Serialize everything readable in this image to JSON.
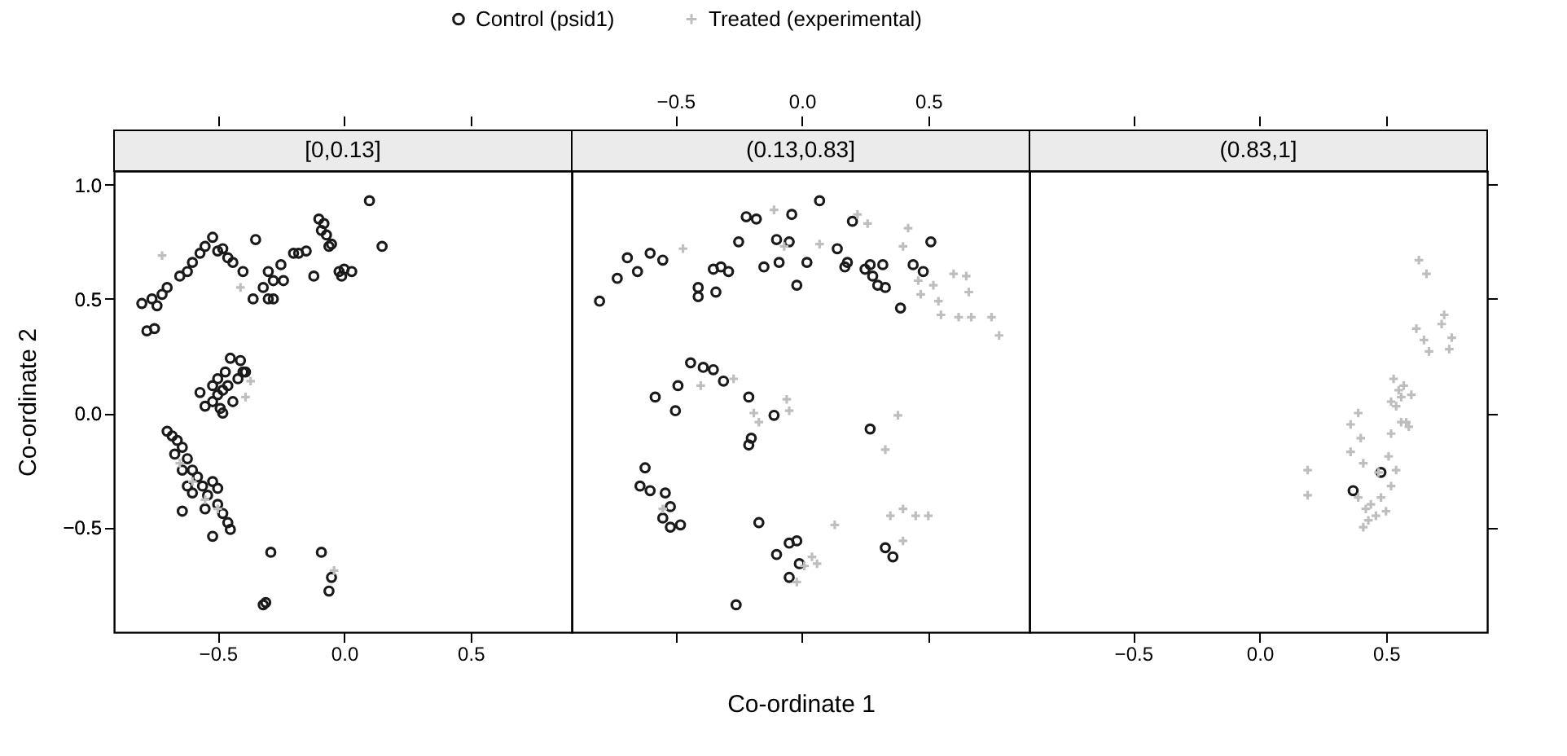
{
  "chart_data": [
    {
      "type": "scatter",
      "title": "[0,0.13]",
      "ylabel": "Co-ordinate 2",
      "legend": "top",
      "xlim": [
        -0.91,
        0.9
      ],
      "ylim": [
        -0.96,
        1.06
      ],
      "xticks": [
        {
          "value": -0.5,
          "label": "−0.5"
        },
        {
          "value": 0,
          "label": "0.0"
        },
        {
          "value": 0.5,
          "label": "0.5"
        }
      ],
      "yticks": [
        {
          "value": -0.5,
          "label": "−0.5"
        },
        {
          "value": 0,
          "label": "0.0"
        },
        {
          "value": 0.5,
          "label": "0.5"
        },
        {
          "value": 1,
          "label": "1.0"
        }
      ],
      "series": [
        {
          "name": "Control (psid1)",
          "color": "#1a1a1a",
          "marker": "circle",
          "x": [
            -0.8,
            -0.78,
            -0.76,
            -0.74,
            -0.72,
            -0.75,
            -0.7,
            -0.65,
            -0.62,
            -0.6,
            -0.57,
            -0.55,
            -0.52,
            -0.5,
            -0.48,
            -0.46,
            -0.44,
            -0.4,
            -0.35,
            -0.3,
            -0.28,
            -0.25,
            -0.2,
            -0.18,
            -0.15,
            -0.1,
            -0.06,
            -0.05,
            -0.02,
            -0.01,
            0.0,
            -0.08,
            -0.07,
            -0.09,
            0.1,
            0.15,
            0.03,
            -0.3,
            -0.32,
            -0.28,
            -0.24,
            -0.36,
            -0.12,
            -0.57,
            -0.55,
            -0.52,
            -0.5,
            -0.48,
            -0.46,
            -0.5,
            -0.47,
            -0.45,
            -0.41,
            -0.42,
            -0.44,
            -0.48,
            -0.49,
            -0.52,
            -0.4,
            -0.39,
            -0.7,
            -0.68,
            -0.66,
            -0.64,
            -0.67,
            -0.62,
            -0.64,
            -0.6,
            -0.58,
            -0.62,
            -0.6,
            -0.56,
            -0.54,
            -0.52,
            -0.5,
            -0.55,
            -0.5,
            -0.48,
            -0.46,
            -0.45,
            -0.52,
            -0.64,
            -0.29,
            -0.32,
            -0.31,
            -0.09,
            -0.06,
            -0.05
          ],
          "values": [
            0.48,
            0.36,
            0.5,
            0.47,
            0.52,
            0.37,
            0.55,
            0.6,
            0.62,
            0.66,
            0.7,
            0.73,
            0.77,
            0.71,
            0.72,
            0.68,
            0.66,
            0.62,
            0.76,
            0.5,
            0.5,
            0.65,
            0.7,
            0.7,
            0.71,
            0.85,
            0.73,
            0.74,
            0.62,
            0.6,
            0.63,
            0.83,
            0.78,
            0.8,
            0.93,
            0.73,
            0.62,
            0.62,
            0.55,
            0.58,
            0.58,
            0.5,
            0.6,
            0.09,
            0.03,
            0.05,
            0.08,
            0.1,
            0.12,
            0.15,
            0.18,
            0.24,
            0.23,
            0.15,
            0.05,
            0.0,
            0.02,
            0.12,
            0.18,
            0.18,
            -0.08,
            -0.1,
            -0.12,
            -0.15,
            -0.18,
            -0.2,
            -0.25,
            -0.25,
            -0.28,
            -0.32,
            -0.35,
            -0.32,
            -0.36,
            -0.3,
            -0.33,
            -0.42,
            -0.4,
            -0.44,
            -0.48,
            -0.51,
            -0.54,
            -0.43,
            -0.61,
            -0.84,
            -0.83,
            -0.61,
            -0.78,
            -0.72
          ]
        },
        {
          "name": "Treated (experimental)",
          "color": "#bebebe",
          "marker": "cross",
          "x": [
            -0.72,
            -0.41,
            -0.37,
            -0.39,
            -0.65,
            -0.6,
            -0.55,
            -0.5,
            -0.04
          ],
          "values": [
            0.69,
            0.55,
            0.14,
            0.07,
            -0.22,
            -0.3,
            -0.38,
            -0.42,
            -0.69
          ]
        }
      ]
    },
    {
      "type": "scatter",
      "title": "(0.13,0.83]",
      "xlabel": "Co-ordinate 1",
      "tick_labels": "x",
      "xlim": [
        -0.91,
        0.9
      ],
      "ylim": [
        -0.96,
        1.06
      ],
      "xticks": [
        {
          "value": -0.5,
          "label": "−0.5"
        },
        {
          "value": 0,
          "label": "0.0"
        },
        {
          "value": 0.5,
          "label": "0.5"
        }
      ],
      "series": [
        {
          "color": "#1a1a1a",
          "marker": "circle",
          "x": [
            -0.8,
            -0.73,
            -0.69,
            -0.65,
            -0.6,
            -0.55,
            -0.41,
            -0.41,
            -0.35,
            -0.32,
            -0.29,
            -0.34,
            -0.25,
            -0.22,
            -0.18,
            -0.15,
            -0.1,
            -0.09,
            -0.05,
            -0.04,
            -0.02,
            0.02,
            0.07,
            0.14,
            0.17,
            0.18,
            0.2,
            0.25,
            0.27,
            0.28,
            0.3,
            0.32,
            0.33,
            0.39,
            0.44,
            0.48,
            0.51,
            -0.58,
            -0.49,
            -0.44,
            -0.39,
            -0.35,
            -0.31,
            -0.21,
            -0.5,
            -0.11,
            -0.2,
            -0.21,
            0.27,
            -0.62,
            -0.64,
            -0.6,
            -0.54,
            -0.52,
            -0.55,
            -0.52,
            -0.48,
            -0.17,
            -0.1,
            -0.05,
            -0.02,
            -0.01,
            -0.05,
            -0.26,
            0.33,
            0.36
          ],
          "values": [
            0.49,
            0.59,
            0.68,
            0.62,
            0.7,
            0.67,
            0.55,
            0.51,
            0.63,
            0.64,
            0.62,
            0.53,
            0.75,
            0.86,
            0.85,
            0.64,
            0.76,
            0.66,
            0.75,
            0.87,
            0.56,
            0.66,
            0.93,
            0.72,
            0.64,
            0.66,
            0.84,
            0.63,
            0.65,
            0.6,
            0.56,
            0.65,
            0.55,
            0.46,
            0.65,
            0.62,
            0.75,
            0.07,
            0.12,
            0.22,
            0.2,
            0.19,
            0.14,
            0.07,
            0.01,
            -0.01,
            -0.11,
            -0.14,
            -0.07,
            -0.24,
            -0.32,
            -0.34,
            -0.35,
            -0.41,
            -0.46,
            -0.5,
            -0.49,
            -0.48,
            -0.62,
            -0.57,
            -0.56,
            -0.66,
            -0.72,
            -0.84,
            -0.59,
            -0.63
          ]
        },
        {
          "color": "#bebebe",
          "marker": "cross",
          "x": [
            -0.47,
            -0.11,
            -0.07,
            0.07,
            0.22,
            0.26,
            0.42,
            0.4,
            0.46,
            0.47,
            0.52,
            0.54,
            0.55,
            0.6,
            0.65,
            0.66,
            0.62,
            0.67,
            0.75,
            0.78,
            -0.27,
            -0.06,
            -0.4,
            -0.19,
            -0.17,
            -0.05,
            0.38,
            0.33,
            0.13,
            0.35,
            0.4,
            0.45,
            0.5,
            0.4,
            0.04,
            0.06,
            0.01,
            -0.02,
            -0.55
          ],
          "values": [
            0.72,
            0.89,
            0.73,
            0.74,
            0.87,
            0.83,
            0.81,
            0.73,
            0.58,
            0.52,
            0.56,
            0.49,
            0.43,
            0.61,
            0.6,
            0.53,
            0.42,
            0.42,
            0.42,
            0.34,
            0.15,
            0.06,
            0.12,
            0.0,
            -0.04,
            0.01,
            -0.01,
            -0.16,
            -0.49,
            -0.45,
            -0.42,
            -0.45,
            -0.45,
            -0.56,
            -0.63,
            -0.66,
            -0.67,
            -0.74,
            -0.42
          ]
        }
      ]
    },
    {
      "type": "scatter",
      "title": "(0.83,1]",
      "tick_labels": "x",
      "xlim": [
        -0.91,
        0.9
      ],
      "ylim": [
        -0.96,
        1.06
      ],
      "xticks": [
        {
          "value": -0.5,
          "label": "−0.5"
        },
        {
          "value": 0,
          "label": "0.0"
        },
        {
          "value": 0.5,
          "label": "0.5"
        }
      ],
      "yticks": [
        {
          "value": -0.5,
          "label": null
        },
        {
          "value": 0,
          "label": null
        },
        {
          "value": 0.5,
          "label": null
        },
        {
          "value": 1,
          "label": null
        }
      ],
      "series": [
        {
          "color": "#1a1a1a",
          "marker": "circle",
          "x": [
            0.37,
            0.48
          ],
          "values": [
            -0.34,
            -0.26
          ]
        },
        {
          "color": "#bebebe",
          "marker": "cross",
          "x": [
            0.63,
            0.66,
            0.73,
            0.72,
            0.62,
            0.65,
            0.67,
            0.76,
            0.75,
            0.56,
            0.52,
            0.54,
            0.56,
            0.59,
            0.52,
            0.58,
            0.39,
            0.36,
            0.4,
            0.36,
            0.41,
            0.51,
            0.54,
            0.47,
            0.52,
            0.19,
            0.19,
            0.39,
            0.42,
            0.46,
            0.41,
            0.5,
            0.48,
            0.55,
            0.57,
            0.6,
            0.53,
            0.44,
            0.43
          ],
          "values": [
            0.67,
            0.61,
            0.43,
            0.39,
            0.37,
            0.32,
            0.27,
            0.33,
            0.28,
            0.07,
            0.05,
            0.03,
            -0.04,
            -0.06,
            -0.09,
            -0.04,
            0.0,
            -0.05,
            -0.11,
            -0.17,
            -0.22,
            -0.19,
            -0.25,
            -0.26,
            -0.32,
            -0.25,
            -0.36,
            -0.37,
            -0.42,
            -0.45,
            -0.5,
            -0.43,
            -0.37,
            0.1,
            0.12,
            0.08,
            0.15,
            -0.4,
            -0.47
          ]
        }
      ]
    }
  ]
}
